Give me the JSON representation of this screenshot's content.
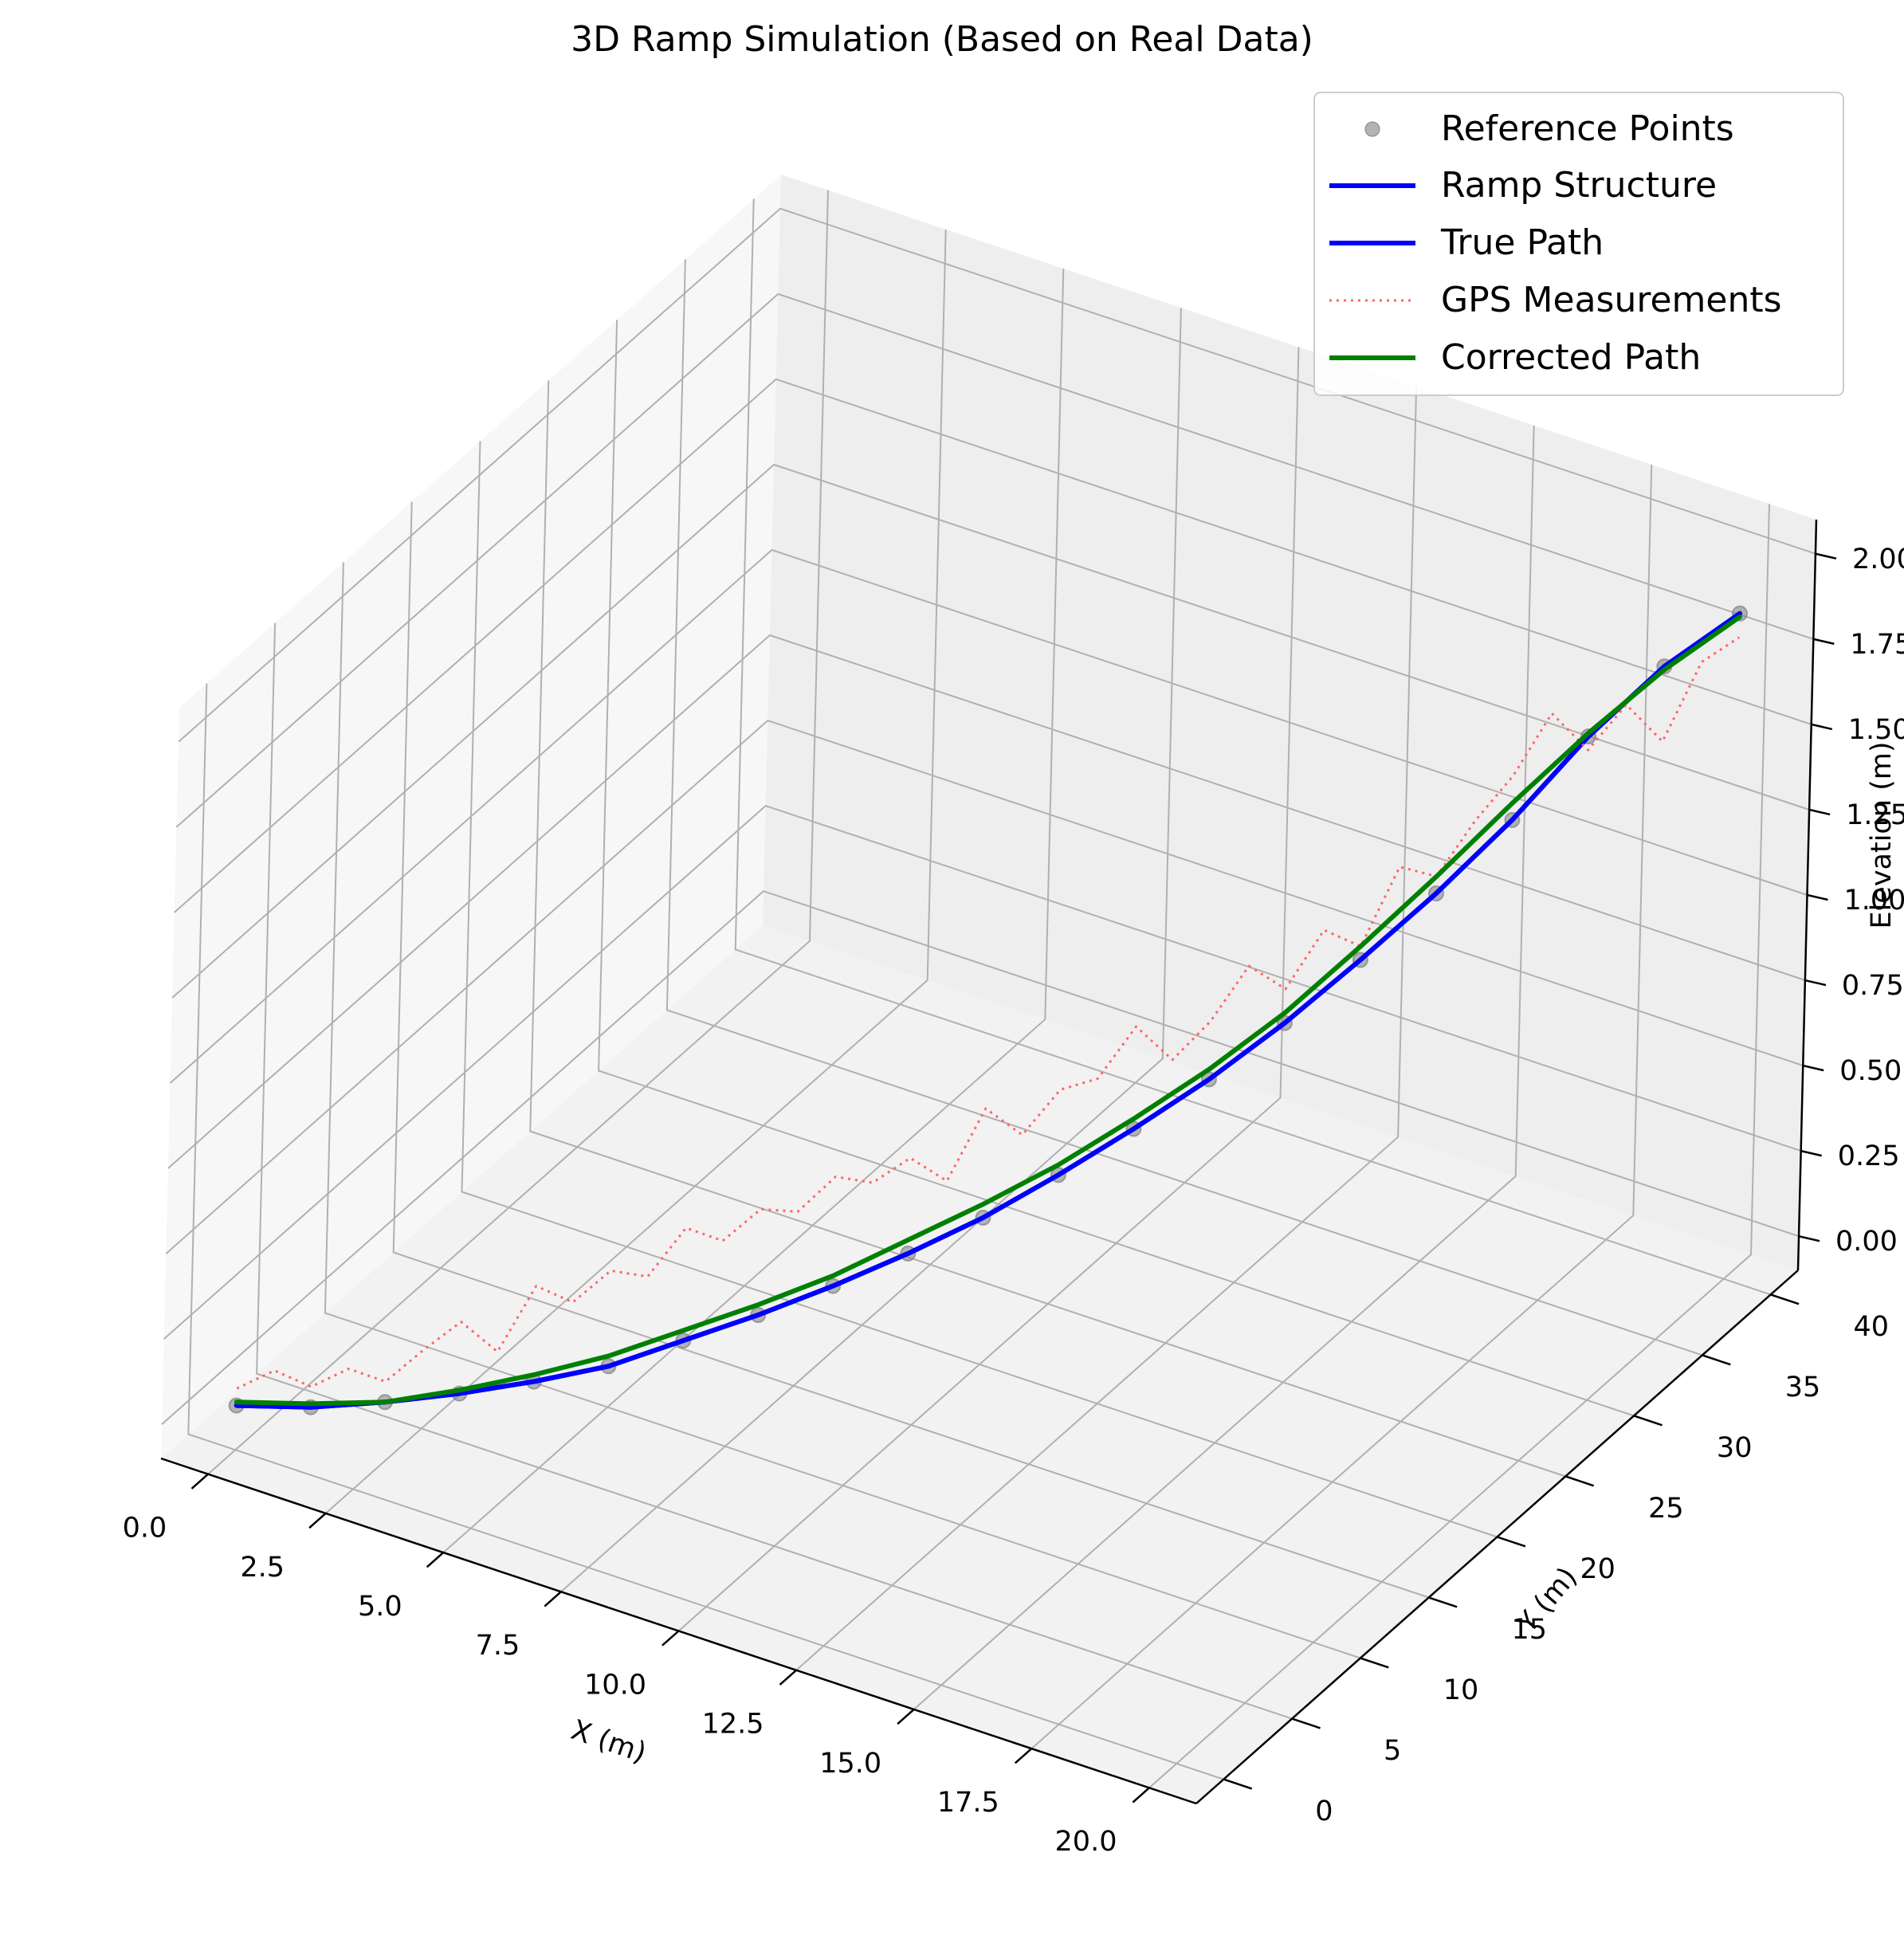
{
  "chart_data": {
    "type": "line",
    "projection": "3d",
    "title": "3D Ramp Simulation (Based on Real Data)",
    "xlabel": "X (m)",
    "ylabel": "Y (m)",
    "zlabel": "Elevation (m)",
    "xlim": [
      -1.0,
      21.0
    ],
    "ylim": [
      -2.0,
      42.0
    ],
    "zlim": [
      -0.1,
      2.1
    ],
    "x_ticks": [
      "0.0",
      "2.5",
      "5.0",
      "7.5",
      "10.0",
      "12.5",
      "15.0",
      "17.5",
      "20.0"
    ],
    "y_ticks": [
      "0",
      "5",
      "10",
      "15",
      "20",
      "25",
      "30",
      "35",
      "40"
    ],
    "z_ticks": [
      "0.00",
      "0.25",
      "0.50",
      "0.75",
      "1.00",
      "1.25",
      "1.50",
      "1.75",
      "2.00"
    ],
    "grid": true,
    "legend_position": "top-right",
    "legend": [
      "Reference Points",
      "Ramp Structure",
      "True Path",
      "GPS Measurements",
      "Corrected Path"
    ],
    "series": [
      {
        "name": "Reference Points",
        "style": "markers",
        "color": "#808080",
        "points": [
          [
            0,
            0,
            0.03
          ],
          [
            1,
            2,
            0.0
          ],
          [
            2,
            4,
            -0.01
          ],
          [
            3,
            6,
            -0.01
          ],
          [
            4,
            8,
            0.0
          ],
          [
            5,
            10,
            0.02
          ],
          [
            6,
            12,
            0.07
          ],
          [
            7,
            14,
            0.12
          ],
          [
            8,
            16,
            0.18
          ],
          [
            9,
            18,
            0.25
          ],
          [
            10,
            20,
            0.33
          ],
          [
            11,
            22,
            0.43
          ],
          [
            12,
            24,
            0.54
          ],
          [
            13,
            26,
            0.66
          ],
          [
            14,
            28,
            0.8
          ],
          [
            15,
            30,
            0.96
          ],
          [
            16,
            32,
            1.13
          ],
          [
            17,
            34,
            1.32
          ],
          [
            18,
            36,
            1.54
          ],
          [
            19,
            38,
            1.72
          ],
          [
            20,
            40,
            1.85
          ]
        ]
      },
      {
        "name": "Ramp Structure",
        "style": "line",
        "color": "#0000ff",
        "points": [
          [
            0,
            0,
            0.03
          ],
          [
            1,
            2,
            0.0
          ],
          [
            2,
            4,
            -0.01
          ],
          [
            3,
            6,
            -0.01
          ],
          [
            4,
            8,
            0.0
          ],
          [
            5,
            10,
            0.02
          ],
          [
            6,
            12,
            0.07
          ],
          [
            7,
            14,
            0.12
          ],
          [
            8,
            16,
            0.18
          ],
          [
            9,
            18,
            0.25
          ],
          [
            10,
            20,
            0.33
          ],
          [
            11,
            22,
            0.43
          ],
          [
            12,
            24,
            0.54
          ],
          [
            13,
            26,
            0.66
          ],
          [
            14,
            28,
            0.8
          ],
          [
            15,
            30,
            0.96
          ],
          [
            16,
            32,
            1.13
          ],
          [
            17,
            34,
            1.32
          ],
          [
            18,
            36,
            1.54
          ],
          [
            19,
            38,
            1.72
          ],
          [
            20,
            40,
            1.85
          ]
        ]
      },
      {
        "name": "True Path",
        "style": "line",
        "color": "#0000ff",
        "points": [
          [
            0,
            0,
            0.03
          ],
          [
            1,
            2,
            0.0
          ],
          [
            2,
            4,
            -0.01
          ],
          [
            3,
            6,
            -0.01
          ],
          [
            4,
            8,
            0.0
          ],
          [
            5,
            10,
            0.02
          ],
          [
            6,
            12,
            0.07
          ],
          [
            7,
            14,
            0.12
          ],
          [
            8,
            16,
            0.18
          ],
          [
            9,
            18,
            0.25
          ],
          [
            10,
            20,
            0.33
          ],
          [
            11,
            22,
            0.43
          ],
          [
            12,
            24,
            0.54
          ],
          [
            13,
            26,
            0.66
          ],
          [
            14,
            28,
            0.8
          ],
          [
            15,
            30,
            0.96
          ],
          [
            16,
            32,
            1.13
          ],
          [
            17,
            34,
            1.32
          ],
          [
            18,
            36,
            1.54
          ],
          [
            19,
            38,
            1.72
          ],
          [
            20,
            40,
            1.85
          ]
        ]
      },
      {
        "name": "GPS Measurements",
        "style": "dotted",
        "color": "#ff6666",
        "points": [
          [
            0,
            0,
            0.08
          ],
          [
            0.5,
            1,
            0.12
          ],
          [
            1,
            2,
            0.06
          ],
          [
            1.5,
            3,
            0.1
          ],
          [
            2,
            4,
            0.05
          ],
          [
            2.5,
            5,
            0.13
          ],
          [
            3,
            6,
            0.2
          ],
          [
            3.5,
            7,
            0.1
          ],
          [
            4,
            8,
            0.28
          ],
          [
            4.5,
            9,
            0.22
          ],
          [
            5,
            10,
            0.3
          ],
          [
            5.5,
            11,
            0.27
          ],
          [
            6,
            12,
            0.4
          ],
          [
            6.5,
            13,
            0.35
          ],
          [
            7,
            14,
            0.43
          ],
          [
            7.5,
            15,
            0.41
          ],
          [
            8,
            16,
            0.5
          ],
          [
            8.5,
            17,
            0.47
          ],
          [
            9,
            18,
            0.53
          ],
          [
            9.5,
            19,
            0.45
          ],
          [
            10,
            20,
            0.65
          ],
          [
            10.5,
            21,
            0.56
          ],
          [
            11,
            22,
            0.68
          ],
          [
            11.5,
            23,
            0.7
          ],
          [
            12,
            24,
            0.84
          ],
          [
            12.5,
            25,
            0.73
          ],
          [
            13,
            26,
            0.83
          ],
          [
            13.5,
            27,
            0.98
          ],
          [
            14,
            28,
            0.9
          ],
          [
            14.5,
            29,
            1.06
          ],
          [
            15,
            30,
            1.0
          ],
          [
            15.5,
            31,
            1.22
          ],
          [
            16,
            32,
            1.18
          ],
          [
            16.5,
            33,
            1.33
          ],
          [
            17,
            34,
            1.45
          ],
          [
            17.5,
            35,
            1.62
          ],
          [
            18,
            36,
            1.5
          ],
          [
            18.5,
            37,
            1.62
          ],
          [
            19,
            38,
            1.5
          ],
          [
            19.5,
            39,
            1.72
          ],
          [
            20,
            40,
            1.78
          ]
        ]
      },
      {
        "name": "Corrected Path",
        "style": "line",
        "color": "#008000",
        "points": [
          [
            0,
            0,
            0.04
          ],
          [
            1,
            2,
            0.01
          ],
          [
            2,
            4,
            -0.01
          ],
          [
            3,
            6,
            0.0
          ],
          [
            4,
            8,
            0.02
          ],
          [
            5,
            10,
            0.05
          ],
          [
            6,
            12,
            0.1
          ],
          [
            7,
            14,
            0.15
          ],
          [
            8,
            16,
            0.21
          ],
          [
            9,
            18,
            0.29
          ],
          [
            10,
            20,
            0.37
          ],
          [
            11,
            22,
            0.46
          ],
          [
            12,
            24,
            0.57
          ],
          [
            13,
            26,
            0.69
          ],
          [
            14,
            28,
            0.83
          ],
          [
            15,
            30,
            1.0
          ],
          [
            16,
            32,
            1.18
          ],
          [
            17,
            34,
            1.37
          ],
          [
            18,
            36,
            1.55
          ],
          [
            19,
            38,
            1.71
          ],
          [
            20,
            40,
            1.84
          ]
        ]
      }
    ]
  }
}
